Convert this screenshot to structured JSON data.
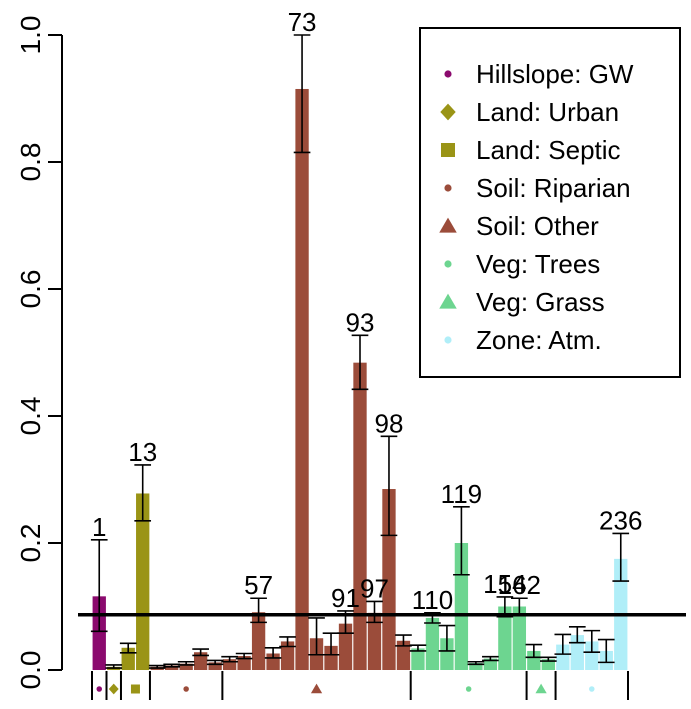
{
  "chart_data": {
    "type": "bar",
    "ylim": [
      0,
      1.0
    ],
    "yticks": [
      "0.0",
      "0.2",
      "0.4",
      "0.6",
      "0.8",
      "1.0"
    ],
    "reference_line": 0.087,
    "legend": {
      "placement": "top-right",
      "items": [
        {
          "label": "Hillslope: GW",
          "symbol": "circle",
          "color": "#8B0A6E"
        },
        {
          "label": "Land: Urban",
          "symbol": "diamond",
          "color": "#9A9416"
        },
        {
          "label": "Land: Septic",
          "symbol": "square",
          "color": "#9A9416"
        },
        {
          "label": "Soil: Riparian",
          "symbol": "circle",
          "color": "#9B4C3A"
        },
        {
          "label": "Soil: Other",
          "symbol": "triangle",
          "color": "#9B4C3A"
        },
        {
          "label": "Veg: Trees",
          "symbol": "circle",
          "color": "#6DD590"
        },
        {
          "label": "Veg: Grass",
          "symbol": "triangle",
          "color": "#6DD590"
        },
        {
          "label": "Zone: Atm.",
          "symbol": "circle",
          "color": "#B0EEF8"
        }
      ]
    },
    "groups": [
      {
        "name": "Hillslope: GW",
        "color": "#8B0A6E",
        "bars": [
          {
            "value": 0.116,
            "err": [
              0.061,
              0.205
            ],
            "label": "1"
          }
        ]
      },
      {
        "name": "Land: Urban",
        "color": "#9A9416",
        "bars": [
          {
            "value": 0.005,
            "err": [
              0.003,
              0.008
            ],
            "label": ""
          }
        ]
      },
      {
        "name": "Land: Septic",
        "color": "#9A9416",
        "bars": [
          {
            "value": 0.035,
            "err": [
              0.027,
              0.042
            ],
            "label": ""
          },
          {
            "value": 0.278,
            "err": [
              0.235,
              0.323
            ],
            "label": "13"
          }
        ]
      },
      {
        "name": "Soil: Riparian",
        "color": "#9B4C3A",
        "bars": [
          {
            "value": 0.005,
            "err": [
              0.003,
              0.007
            ],
            "label": ""
          },
          {
            "value": 0.007,
            "err": [
              0.005,
              0.009
            ],
            "label": ""
          },
          {
            "value": 0.01,
            "err": [
              0.008,
              0.013
            ],
            "label": ""
          },
          {
            "value": 0.028,
            "err": [
              0.023,
              0.033
            ],
            "label": ""
          },
          {
            "value": 0.012,
            "err": [
              0.009,
              0.015
            ],
            "label": ""
          }
        ]
      },
      {
        "name": "Soil: Other",
        "color": "#9B4C3A",
        "bars": [
          {
            "value": 0.017,
            "err": [
              0.013,
              0.021
            ],
            "label": ""
          },
          {
            "value": 0.022,
            "err": [
              0.018,
              0.026
            ],
            "label": ""
          },
          {
            "value": 0.091,
            "err": [
              0.075,
              0.113
            ],
            "label": "57"
          },
          {
            "value": 0.026,
            "err": [
              0.019,
              0.035
            ],
            "label": ""
          },
          {
            "value": 0.045,
            "err": [
              0.037,
              0.052
            ],
            "label": ""
          },
          {
            "value": 0.915,
            "err": [
              0.815,
              1.0
            ],
            "label": "73"
          },
          {
            "value": 0.05,
            "err": [
              0.024,
              0.082
            ],
            "label": ""
          },
          {
            "value": 0.038,
            "err": [
              0.024,
              0.058
            ],
            "label": ""
          },
          {
            "value": 0.073,
            "err": [
              0.058,
              0.093
            ],
            "label": "91"
          },
          {
            "value": 0.484,
            "err": [
              0.442,
              0.527
            ],
            "label": "93"
          },
          {
            "value": 0.09,
            "err": [
              0.075,
              0.108
            ],
            "label": "97"
          },
          {
            "value": 0.285,
            "err": [
              0.212,
              0.368
            ],
            "label": "98"
          },
          {
            "value": 0.046,
            "err": [
              0.038,
              0.055
            ],
            "label": ""
          }
        ]
      },
      {
        "name": "Veg: Trees",
        "color": "#6DD590",
        "bars": [
          {
            "value": 0.034,
            "err": [
              0.03,
              0.039
            ],
            "label": ""
          },
          {
            "value": 0.082,
            "err": [
              0.074,
              0.09
            ],
            "label": "110"
          },
          {
            "value": 0.05,
            "err": [
              0.03,
              0.07
            ],
            "label": ""
          },
          {
            "value": 0.2,
            "err": [
              0.15,
              0.257
            ],
            "label": "119"
          },
          {
            "value": 0.011,
            "err": [
              0.009,
              0.013
            ],
            "label": ""
          },
          {
            "value": 0.018,
            "err": [
              0.015,
              0.021
            ],
            "label": ""
          },
          {
            "value": 0.1,
            "err": [
              0.084,
              0.115
            ],
            "label": "154"
          },
          {
            "value": 0.1,
            "err": [
              0.086,
              0.113
            ],
            "label": "162"
          }
        ]
      },
      {
        "name": "Veg: Grass",
        "color": "#6DD590",
        "bars": [
          {
            "value": 0.03,
            "err": [
              0.02,
              0.04
            ],
            "label": ""
          },
          {
            "value": 0.017,
            "err": [
              0.014,
              0.02
            ],
            "label": ""
          }
        ]
      },
      {
        "name": "Zone: Atm.",
        "color": "#B0EEF8",
        "bars": [
          {
            "value": 0.04,
            "err": [
              0.025,
              0.056
            ],
            "label": ""
          },
          {
            "value": 0.055,
            "err": [
              0.043,
              0.068
            ],
            "label": ""
          },
          {
            "value": 0.045,
            "err": [
              0.028,
              0.062
            ],
            "label": ""
          },
          {
            "value": 0.03,
            "err": [
              0.012,
              0.048
            ],
            "label": ""
          },
          {
            "value": 0.175,
            "err": [
              0.14,
              0.215
            ],
            "label": "236"
          }
        ]
      }
    ]
  }
}
